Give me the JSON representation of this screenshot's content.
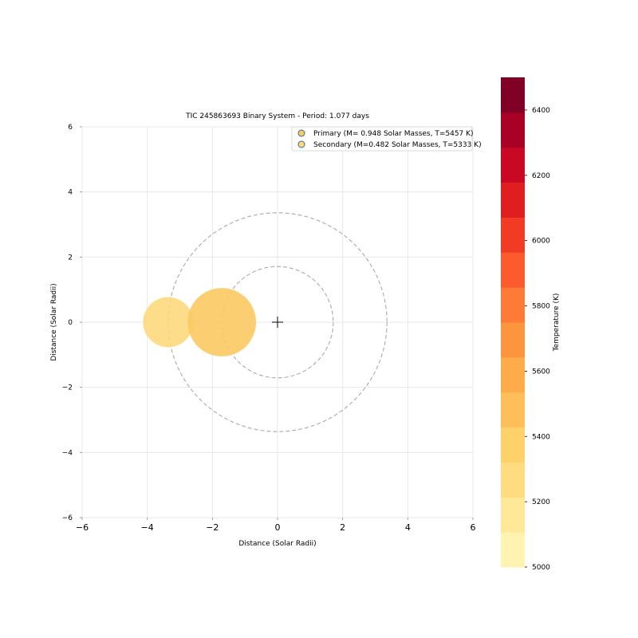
{
  "chart_data": {
    "type": "scatter",
    "title": "TIC 245863693 Binary System - Period: 1.077 days",
    "xlabel": "Distance (Solar Radii)",
    "ylabel": "Distance (Solar Radii)",
    "xlim": [
      -6,
      6
    ],
    "ylim": [
      -6,
      6
    ],
    "xticks": [
      -6,
      -4,
      -2,
      0,
      2,
      4,
      6
    ],
    "yticks": [
      -6,
      -4,
      -2,
      0,
      2,
      4,
      6
    ],
    "xtick_labels": [
      "−6",
      "−4",
      "−2",
      "0",
      "2",
      "4",
      "6"
    ],
    "ytick_labels": [
      "−6",
      "−4",
      "−2",
      "0",
      "2",
      "4",
      "6"
    ],
    "grid": true,
    "legend_position": "top-right",
    "center_of_mass": {
      "x": 0,
      "y": 0,
      "marker": "plus"
    },
    "orbits": [
      {
        "name": "primary orbit",
        "radius": 1.71
      },
      {
        "name": "secondary orbit",
        "radius": 3.36
      }
    ],
    "bodies": [
      {
        "name": "Primary (M= 0.948  Solar Masses, T=5457 K)",
        "x": -1.71,
        "y": 0,
        "radius": 1.05,
        "temperature": 5457,
        "color": "#fbc963"
      },
      {
        "name": "Secondary (M=0.482 Solar Masses, T=5333 K)",
        "x": -3.36,
        "y": 0,
        "radius": 0.77,
        "temperature": 5333,
        "color": "#fdd97c"
      }
    ],
    "colorbar": {
      "label": "Temperature (K)",
      "range": [
        5000,
        6500
      ],
      "ticks": [
        5000,
        5200,
        5400,
        5600,
        5800,
        6000,
        6200,
        6400
      ],
      "tick_labels": [
        "5000",
        "5200",
        "5400",
        "5600",
        "5800",
        "6000",
        "6200",
        "6400"
      ],
      "colormap": "YlOrRd",
      "colors": [
        "#fff3b2",
        "#ffe897",
        "#fedc7f",
        "#fed16a",
        "#febf5a",
        "#feab4a",
        "#fd953f",
        "#fd7a37",
        "#fc5b2e",
        "#f23b25",
        "#e11e1f",
        "#c90823",
        "#a90026",
        "#800026"
      ]
    }
  }
}
